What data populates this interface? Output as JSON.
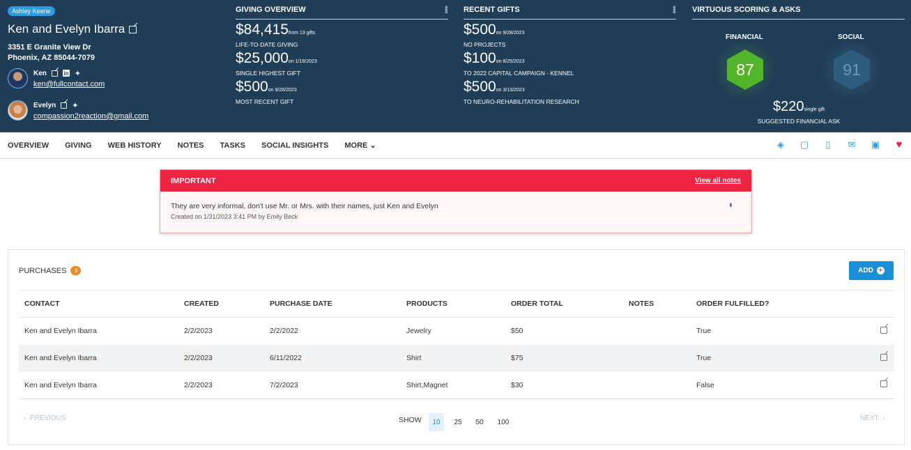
{
  "header": {
    "owner_badge": "Ashley Keene",
    "donor_name": "Ken and Evelyn Ibarra",
    "address_line1": "3351 E Granite View Dr",
    "address_line2": "Phoenix, AZ 85044-7079",
    "people": [
      {
        "name": "Ken",
        "email": "ken@fullcontact.com",
        "linkedin": "in",
        "twitter": "🐦"
      },
      {
        "name": "Evelyn",
        "email": "compassion2reaction@gmail.com",
        "twitter": "🐦"
      }
    ],
    "giving": {
      "title": "GIVING OVERVIEW",
      "stats": [
        {
          "amount": "$84,415",
          "note": "from 13 gifts",
          "label": "LIFE-TO-DATE GIVING"
        },
        {
          "amount": "$25,000",
          "note": "on 1/19/2023",
          "label": "SINGLE HIGHEST GIFT"
        },
        {
          "amount": "$500",
          "note": "on 9/28/2023",
          "label": "MOST RECENT GIFT"
        }
      ]
    },
    "recent": {
      "title": "RECENT GIFTS",
      "stats": [
        {
          "amount": "$500",
          "note": "on 9/28/2023",
          "label": "NO PROJECTS"
        },
        {
          "amount": "$100",
          "note": "on 8/25/2023",
          "label": "TO 2022 CAPITAL CAMPAIGN - KENNEL"
        },
        {
          "amount": "$500",
          "note": "on 3/13/2023",
          "label": "TO NEURO-REHABILITATION RESEARCH"
        }
      ]
    },
    "scoring": {
      "title": "VIRTUOUS SCORING & ASKS",
      "financial_label": "FINANCIAL",
      "financial_score": "87",
      "social_label": "SOCIAL",
      "social_score": "91",
      "ask_amount": "$220",
      "ask_note": "single gift",
      "ask_label": "SUGGESTED FINANCIAL ASK",
      "financial_color": "#53b52a",
      "social_color": "#2d5d7e"
    }
  },
  "nav": {
    "items": [
      "OVERVIEW",
      "GIVING",
      "WEB HISTORY",
      "NOTES",
      "TASKS",
      "SOCIAL INSIGHTS",
      "MORE"
    ],
    "more_chevron": "⌄",
    "icons": [
      "map-icon",
      "note-icon",
      "phone-icon",
      "mail-icon",
      "folder-icon",
      "heart-icon"
    ]
  },
  "important": {
    "title": "IMPORTANT",
    "link": "View all notes",
    "text": "They are very informal, don't use Mr. or Mrs. with their names, just Ken and Evelyn",
    "meta": "Created on 1/31/2023 3:41 PM by Emily Beck",
    "accent": "#ee2442"
  },
  "purchases": {
    "title": "PURCHASES",
    "count": "3",
    "add_label": "ADD",
    "columns": [
      "CONTACT",
      "CREATED",
      "PURCHASE DATE",
      "PRODUCTS",
      "ORDER TOTAL",
      "NOTES",
      "ORDER FULFILLED?"
    ],
    "rows": [
      [
        "Ken and Evelyn Ibarra",
        "2/2/2023",
        "2/2/2022",
        "Jewelry",
        "$50",
        "",
        "True"
      ],
      [
        "Ken and Evelyn Ibarra",
        "2/2/2023",
        "6/11/2022",
        "Shirt",
        "$75",
        "",
        "True"
      ],
      [
        "Ken and Evelyn Ibarra",
        "2/2/2023",
        "7/2/2023",
        "Shirt,Magnet",
        "$30",
        "",
        "False"
      ]
    ],
    "pager": {
      "previous": "PREVIOUS",
      "next": "NEXT",
      "show_label": "SHOW",
      "sizes": [
        "10",
        "25",
        "50",
        "100"
      ],
      "selected": "10"
    }
  }
}
